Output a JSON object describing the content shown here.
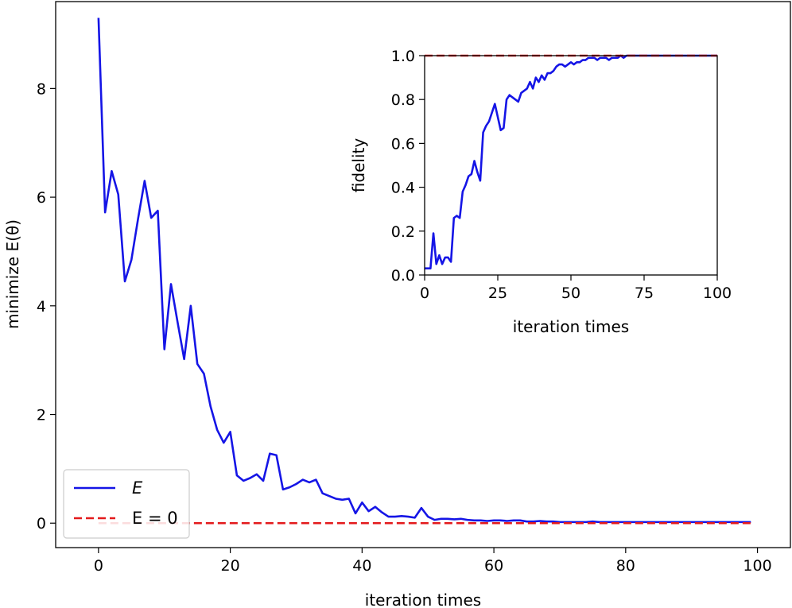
{
  "chart_data": [
    {
      "type": "line",
      "xlabel": "iteration times",
      "ylabel": "minimize E(θ)",
      "xlim": [
        -6.5,
        105
      ],
      "ylim": [
        -0.45,
        9.6
      ],
      "xticks": [
        0,
        20,
        40,
        60,
        80,
        100
      ],
      "yticks": [
        0,
        2,
        4,
        6,
        8
      ],
      "grid": false,
      "legend": {
        "placement": "lower-left"
      },
      "colors": {
        "E": "#1515e6",
        "E0": "#e31a1c"
      },
      "series": [
        {
          "name": "E",
          "style": "solid",
          "x": [
            0,
            1,
            2,
            3,
            4,
            5,
            6,
            7,
            8,
            9,
            10,
            11,
            12,
            13,
            14,
            15,
            16,
            17,
            18,
            19,
            20,
            21,
            22,
            23,
            24,
            25,
            26,
            27,
            28,
            29,
            30,
            31,
            32,
            33,
            34,
            35,
            36,
            37,
            38,
            39,
            40,
            41,
            42,
            43,
            44,
            45,
            46,
            47,
            48,
            49,
            50,
            51,
            52,
            53,
            54,
            55,
            56,
            57,
            58,
            59,
            60,
            61,
            62,
            63,
            64,
            65,
            66,
            67,
            68,
            69,
            70,
            71,
            72,
            73,
            74,
            75,
            76,
            77,
            78,
            79,
            80,
            81,
            82,
            83,
            84,
            85,
            86,
            87,
            88,
            89,
            90,
            91,
            92,
            93,
            94,
            95,
            96,
            97,
            98,
            99
          ],
          "values": [
            9.3,
            5.72,
            6.48,
            6.05,
            4.45,
            4.85,
            5.6,
            6.3,
            5.62,
            5.75,
            3.2,
            4.4,
            3.7,
            3.02,
            4.0,
            2.93,
            2.75,
            2.15,
            1.72,
            1.48,
            1.68,
            0.88,
            0.78,
            0.83,
            0.9,
            0.78,
            1.28,
            1.25,
            0.62,
            0.66,
            0.72,
            0.8,
            0.75,
            0.8,
            0.55,
            0.5,
            0.45,
            0.43,
            0.45,
            0.18,
            0.38,
            0.22,
            0.3,
            0.2,
            0.12,
            0.12,
            0.13,
            0.12,
            0.1,
            0.28,
            0.12,
            0.06,
            0.08,
            0.08,
            0.07,
            0.08,
            0.06,
            0.05,
            0.05,
            0.04,
            0.05,
            0.05,
            0.04,
            0.05,
            0.05,
            0.03,
            0.03,
            0.04,
            0.03,
            0.03,
            0.02,
            0.02,
            0.02,
            0.02,
            0.02,
            0.03,
            0.02,
            0.02,
            0.02,
            0.02,
            0.02,
            0.02,
            0.02,
            0.02,
            0.02,
            0.02,
            0.02,
            0.02,
            0.02,
            0.02,
            0.02,
            0.02,
            0.02,
            0.02,
            0.02,
            0.02,
            0.02,
            0.02,
            0.02,
            0.02
          ]
        },
        {
          "name": "E = 0",
          "style": "dashed",
          "x": [
            0,
            99
          ],
          "values": [
            0,
            0
          ]
        }
      ]
    },
    {
      "type": "line",
      "xlabel": "iteration times",
      "ylabel": "fidelity",
      "xlim": [
        0,
        100
      ],
      "ylim": [
        0,
        1
      ],
      "xticks": [
        0,
        25,
        50,
        75,
        100
      ],
      "yticks": [
        0.0,
        0.2,
        0.4,
        0.6,
        0.8,
        1.0
      ],
      "yticklabels": [
        "0.0",
        "0.2",
        "0.4",
        "0.6",
        "0.8",
        "1.0"
      ],
      "grid": false,
      "series": [
        {
          "style": "solid",
          "x": [
            0,
            1,
            2,
            3,
            4,
            5,
            6,
            7,
            8,
            9,
            10,
            11,
            12,
            13,
            14,
            15,
            16,
            17,
            18,
            19,
            20,
            21,
            22,
            23,
            24,
            25,
            26,
            27,
            28,
            29,
            30,
            31,
            32,
            33,
            34,
            35,
            36,
            37,
            38,
            39,
            40,
            41,
            42,
            43,
            44,
            45,
            46,
            47,
            48,
            49,
            50,
            51,
            52,
            53,
            54,
            55,
            56,
            57,
            58,
            59,
            60,
            61,
            62,
            63,
            64,
            65,
            66,
            67,
            68,
            69,
            70,
            71,
            72,
            73,
            74,
            75,
            76,
            77,
            78,
            79,
            80,
            81,
            82,
            83,
            84,
            85,
            86,
            87,
            88,
            89,
            90,
            91,
            92,
            93,
            94,
            95,
            96,
            97,
            98,
            99,
            100
          ],
          "values": [
            0.03,
            0.03,
            0.03,
            0.19,
            0.05,
            0.09,
            0.05,
            0.08,
            0.08,
            0.06,
            0.26,
            0.27,
            0.26,
            0.38,
            0.41,
            0.45,
            0.46,
            0.52,
            0.47,
            0.43,
            0.65,
            0.68,
            0.7,
            0.74,
            0.78,
            0.72,
            0.66,
            0.67,
            0.8,
            0.82,
            0.81,
            0.8,
            0.79,
            0.83,
            0.84,
            0.85,
            0.88,
            0.85,
            0.9,
            0.88,
            0.91,
            0.89,
            0.92,
            0.92,
            0.93,
            0.95,
            0.96,
            0.96,
            0.95,
            0.96,
            0.97,
            0.96,
            0.97,
            0.97,
            0.98,
            0.98,
            0.99,
            0.99,
            0.99,
            0.98,
            0.99,
            0.99,
            0.99,
            0.98,
            0.99,
            0.99,
            0.99,
            1.0,
            0.99,
            1.0,
            1.0,
            1.0,
            1.0,
            1.0,
            1.0,
            1.0,
            1.0,
            1.0,
            1.0,
            1.0,
            1.0,
            1.0,
            1.0,
            1.0,
            1.0,
            1.0,
            1.0,
            1.0,
            1.0,
            1.0,
            1.0,
            1.0,
            1.0,
            1.0,
            1.0,
            1.0,
            1.0,
            1.0,
            1.0,
            1.0,
            1.0
          ]
        },
        {
          "style": "dashed",
          "x": [
            0,
            100
          ],
          "values": [
            1.0,
            1.0
          ]
        }
      ]
    }
  ],
  "legend": {
    "entries": [
      {
        "label": "E",
        "style": "solid",
        "color": "#1515e6"
      },
      {
        "label": "E = 0",
        "style": "dashed",
        "color": "#e31a1c"
      }
    ]
  }
}
